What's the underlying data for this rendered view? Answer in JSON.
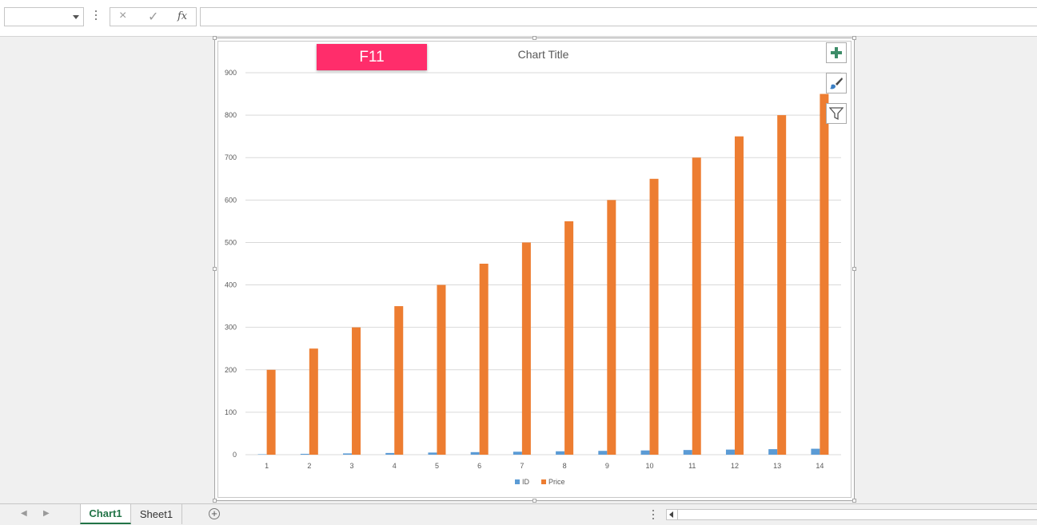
{
  "formula_bar": {
    "name_box_value": "",
    "cancel_icon": "×",
    "enter_icon": "✓",
    "fx_label": "fx",
    "formula_value": ""
  },
  "overlay": {
    "key_label": "F11"
  },
  "colors": {
    "id_series": "#5b9bd5",
    "price_series": "#ed7d31",
    "gridline": "#d9d9d9",
    "tab_active": "#217346"
  },
  "icons": {
    "chart_elements": "plus-icon",
    "chart_styles": "brush-icon",
    "chart_filters": "funnel-icon"
  },
  "chart_data": {
    "type": "bar",
    "title": "Chart Title",
    "xlabel": "",
    "ylabel": "",
    "categories": [
      "1",
      "2",
      "3",
      "4",
      "5",
      "6",
      "7",
      "8",
      "9",
      "10",
      "11",
      "12",
      "13",
      "14"
    ],
    "series": [
      {
        "name": "ID",
        "values": [
          1,
          2,
          3,
          4,
          5,
          6,
          7,
          8,
          9,
          10,
          11,
          12,
          13,
          14
        ]
      },
      {
        "name": "Price",
        "values": [
          200,
          250,
          300,
          350,
          400,
          450,
          500,
          550,
          600,
          650,
          700,
          750,
          800,
          850
        ]
      }
    ],
    "ylim": [
      0,
      900
    ],
    "yticks": [
      0,
      100,
      200,
      300,
      400,
      500,
      600,
      700,
      800,
      900
    ],
    "grid": true,
    "legend": "bottom"
  },
  "tabs": [
    {
      "label": "Chart1",
      "active": true
    },
    {
      "label": "Sheet1",
      "active": false
    }
  ]
}
